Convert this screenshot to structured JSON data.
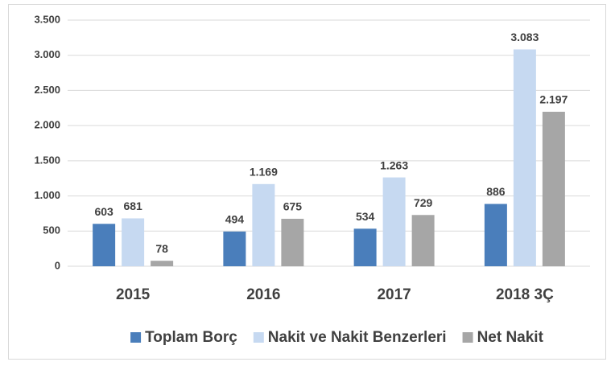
{
  "chart_data": {
    "type": "bar",
    "categories": [
      "2015",
      "2016",
      "2017",
      "2018 3Ç"
    ],
    "series": [
      {
        "name": "Toplam Borç",
        "color": "#4a7ebb",
        "values": [
          603,
          494,
          534,
          886
        ],
        "value_labels": [
          "603",
          "494",
          "534",
          "886"
        ]
      },
      {
        "name": "Nakit ve Nakit Benzerleri",
        "color": "#c6d9f1",
        "values": [
          681,
          1169,
          1263,
          3083
        ],
        "value_labels": [
          "681",
          "1.169",
          "1.263",
          "3.083"
        ]
      },
      {
        "name": "Net Nakit",
        "color": "#a6a6a6",
        "values": [
          78,
          675,
          729,
          2197
        ],
        "value_labels": [
          "78",
          "675",
          "729",
          "2.197"
        ]
      }
    ],
    "ylim": [
      0,
      3500
    ],
    "yticks": [
      0,
      500,
      {
        "value": 1000,
        "label": "1.000"
      },
      {
        "value": 1500,
        "label": "1.500"
      },
      {
        "value": 2000,
        "label": "2.000"
      },
      {
        "value": 2500,
        "label": "2.500"
      },
      {
        "value": 3000,
        "label": "3.000"
      },
      {
        "value": 3500,
        "label": "3.500"
      }
    ],
    "grid": true,
    "legend": "bottom"
  }
}
